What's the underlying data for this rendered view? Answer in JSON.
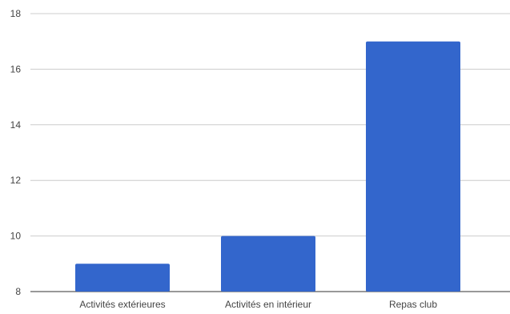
{
  "chart_data": {
    "type": "bar",
    "title": "",
    "xlabel": "",
    "ylabel": "",
    "categories": [
      "Activités extérieures",
      "Activités en intérieur",
      "Repas club"
    ],
    "series": [
      {
        "values": [
          9,
          10,
          17
        ],
        "color": "#3366cc"
      }
    ],
    "ylim": [
      8,
      18
    ],
    "yticks": [
      8,
      10,
      12,
      14,
      16,
      18
    ],
    "grid": true,
    "legend": "none"
  }
}
